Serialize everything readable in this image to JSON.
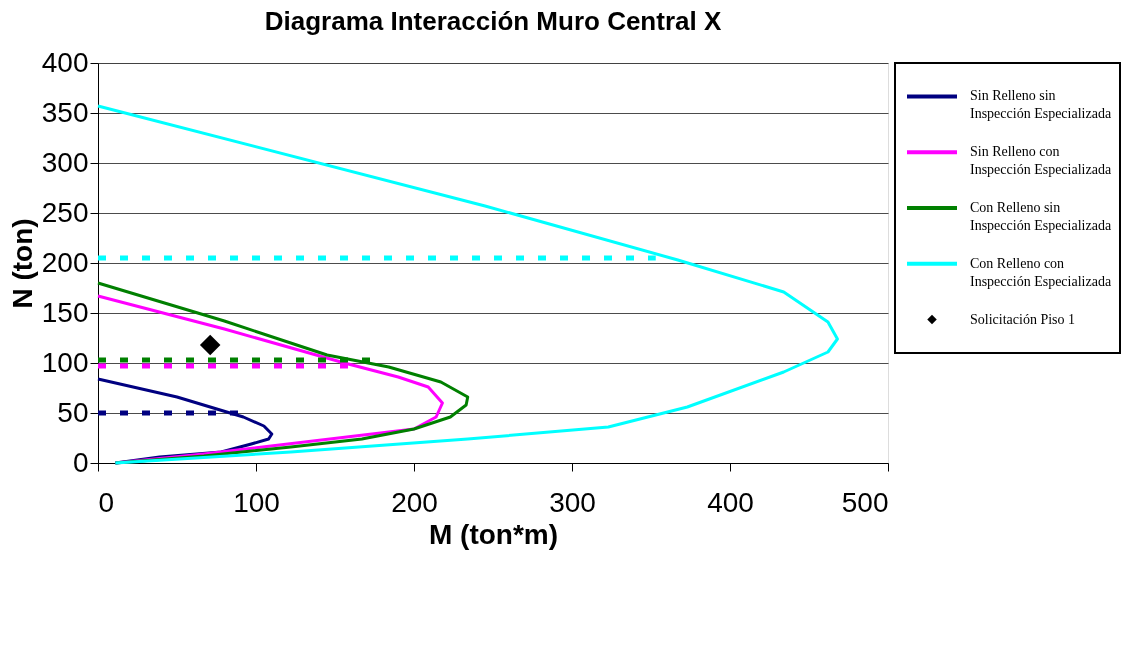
{
  "chart_data": {
    "type": "line",
    "title": "Diagrama Interacción Muro Central X",
    "xlabel": "M (ton*m)",
    "ylabel": "N (ton)",
    "xlim": [
      0,
      500
    ],
    "xticks": [
      0,
      100,
      200,
      300,
      400,
      500
    ],
    "ylim": [
      0,
      400
    ],
    "yticks": [
      0,
      50,
      100,
      150,
      200,
      250,
      300,
      350,
      400
    ],
    "grid": "y",
    "legend": "right",
    "marker": "none",
    "series": [
      {
        "name": "Sin Relleno sin Inspección Especializada",
        "color": "#000080",
        "x": [
          0,
          50,
          92,
          105,
          110,
          108,
          97,
          78,
          39,
          11
        ],
        "values": [
          84,
          66,
          46,
          37,
          29,
          24,
          19,
          11,
          6,
          0
        ]
      },
      {
        "name": "Sin Relleno con Inspección Especializada",
        "color": "#ff00ff",
        "x": [
          0,
          80,
          156,
          190,
          209,
          218,
          214,
          200,
          67,
          11
        ],
        "values": [
          167,
          134,
          100,
          86,
          76,
          60,
          46,
          34,
          9,
          0
        ]
      },
      {
        "name": "Con Relleno sin Inspección Especializada",
        "color": "#008000",
        "x": [
          0,
          80,
          145,
          184,
          217,
          234,
          233,
          223,
          200,
          167,
          122,
          67,
          11
        ],
        "values": [
          180,
          142,
          108,
          96,
          81,
          66,
          58,
          46,
          34,
          24,
          16,
          7,
          0
        ]
      },
      {
        "name": "Con Relleno con Inspección Especializada",
        "color": "#00ffff",
        "x": [
          0,
          245,
          367,
          434,
          462,
          468,
          462,
          434,
          373,
          323,
          234,
          122,
          11
        ],
        "values": [
          357,
          257,
          203,
          171,
          141,
          124,
          111,
          91,
          56,
          36,
          24,
          11,
          0
        ]
      },
      {
        "color": "#000080",
        "line_style": "dotted",
        "x": [
          0,
          90
        ],
        "values": [
          50,
          50
        ]
      },
      {
        "color": "#ff00ff",
        "line_style": "dotted",
        "x": [
          0,
          160
        ],
        "values": [
          97,
          97
        ]
      },
      {
        "color": "#008000",
        "line_style": "dotted",
        "x": [
          0,
          175
        ],
        "values": [
          103,
          103
        ]
      },
      {
        "color": "#00ffff",
        "line_style": "dotted",
        "x": [
          0,
          353
        ],
        "values": [
          205,
          205
        ]
      },
      {
        "name": "Solicitación Piso 1",
        "type": "scatter",
        "marker": "diamond",
        "color": "#000000",
        "x": [
          71
        ],
        "values": [
          118
        ]
      }
    ]
  }
}
